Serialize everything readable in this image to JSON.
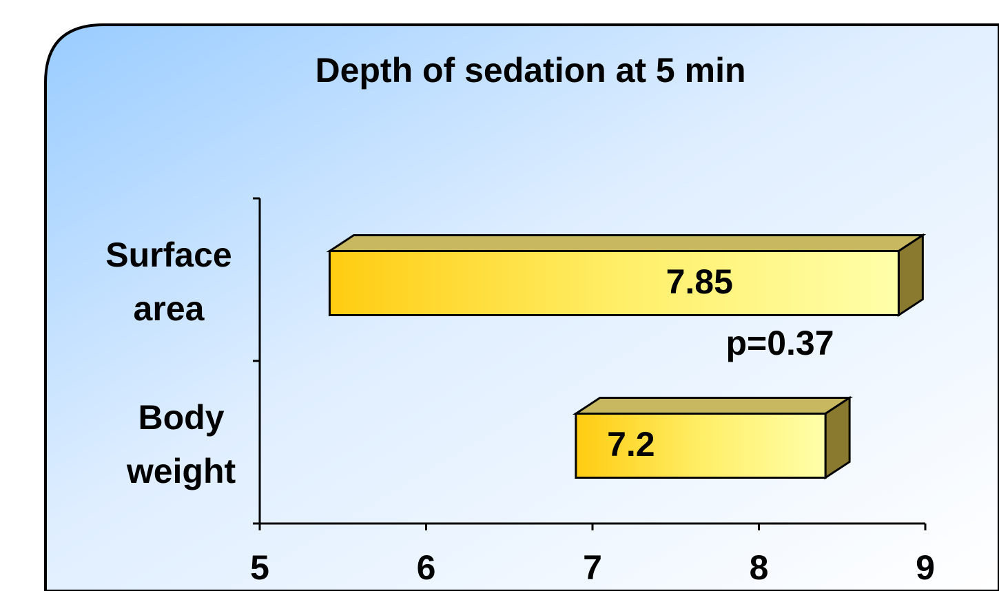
{
  "chart_data": {
    "type": "floating-bar",
    "title": "Depth of sedation at 5 min",
    "categories": [
      "Surface area",
      "Body weight"
    ],
    "low": [
      5.42,
      6.9
    ],
    "high": [
      8.84,
      8.4
    ],
    "values": [
      7.85,
      7.2
    ],
    "color": "#ffee55",
    "xlim": [
      5,
      9
    ],
    "xticks": [
      5,
      6,
      7,
      8,
      9
    ],
    "annotations": [
      "p=0.37"
    ]
  }
}
